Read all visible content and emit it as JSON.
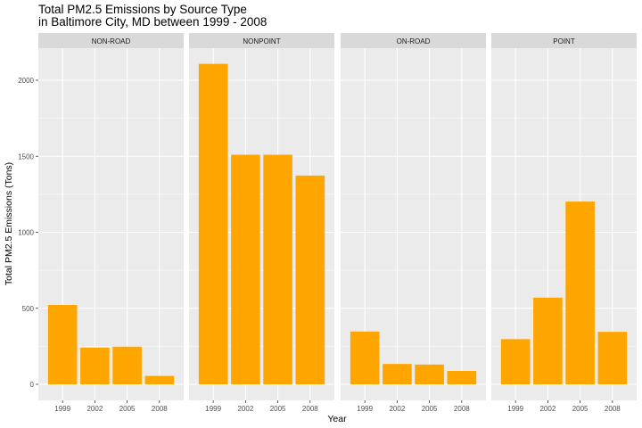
{
  "chart_data": {
    "type": "bar",
    "title_line1": "Total PM2.5 Emissions by Source Type",
    "title_line2": "in Baltimore City, MD between 1999 - 2008",
    "xlabel": "Year",
    "ylabel": "Total PM2.5 Emissions (Tons)",
    "categories": [
      "1999",
      "2002",
      "2005",
      "2008"
    ],
    "yticks": [
      0,
      500,
      1000,
      1500,
      2000
    ],
    "ylim": [
      -115,
      2230
    ],
    "grid": true,
    "bar_color": "#FFA500",
    "panel_bg": "#EBEBEB",
    "strip_bg": "#D9D9D9",
    "facets": [
      {
        "name": "NON-ROAD",
        "values": [
          522,
          241,
          248,
          55
        ]
      },
      {
        "name": "NONPOINT",
        "values": [
          2108,
          1510,
          1510,
          1373
        ]
      },
      {
        "name": "ON-ROAD",
        "values": [
          347,
          134,
          130,
          88
        ]
      },
      {
        "name": "POINT",
        "values": [
          297,
          570,
          1202,
          345
        ]
      }
    ]
  }
}
